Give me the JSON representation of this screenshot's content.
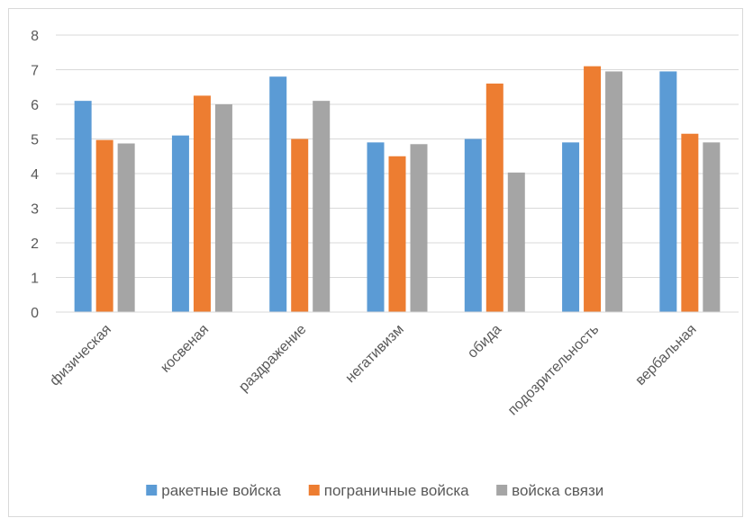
{
  "chart_data": {
    "type": "bar",
    "title": "",
    "xlabel": "",
    "ylabel": "",
    "ylim": [
      0,
      8
    ],
    "yticks": [
      "0",
      "1",
      "2",
      "3",
      "4",
      "5",
      "6",
      "7",
      "8"
    ],
    "grid": true,
    "legend_position": "bottom",
    "categories": [
      "физическая",
      "косвеная",
      "раздражение",
      "негативизм",
      "обида",
      "подозрительность",
      "вербальная"
    ],
    "series": [
      {
        "name": "ракетные войска",
        "color": "#5b9bd5",
        "values": [
          6.1,
          5.1,
          6.8,
          4.9,
          5.0,
          4.9,
          6.95
        ]
      },
      {
        "name": "пограничные войска",
        "color": "#ed7d31",
        "values": [
          4.97,
          6.25,
          5.0,
          4.5,
          6.6,
          7.1,
          5.15
        ]
      },
      {
        "name": "войска связи",
        "color": "#a5a5a5",
        "values": [
          4.87,
          6.0,
          6.1,
          4.85,
          4.03,
          6.95,
          4.9
        ]
      }
    ]
  }
}
